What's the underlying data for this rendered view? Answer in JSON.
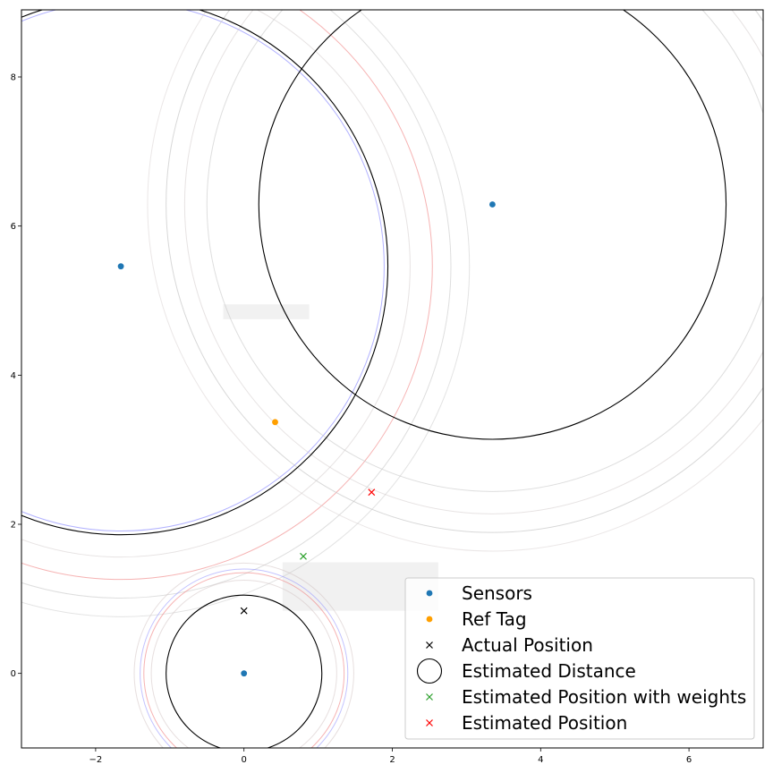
{
  "chart_data": {
    "type": "scatter",
    "title": "",
    "xlabel": "",
    "ylabel": "",
    "xlim": [
      -3,
      7
    ],
    "ylim": [
      -1,
      8.9
    ],
    "x_ticks": [
      -2,
      0,
      2,
      4,
      6
    ],
    "x_tick_labels": [
      "−2",
      "0",
      "2",
      "4",
      "6"
    ],
    "y_ticks": [
      0,
      2,
      4,
      6,
      8
    ],
    "y_tick_labels": [
      "0",
      "2",
      "4",
      "6",
      "8"
    ],
    "grid": false,
    "legend_position": "lower-right",
    "series": [
      {
        "name": "Sensors",
        "kind": "points",
        "marker": "circle",
        "color": "#1f77b4",
        "points": [
          [
            -1.66,
            5.46
          ],
          [
            3.35,
            6.29
          ],
          [
            0.0,
            0.0
          ]
        ]
      },
      {
        "name": "Ref Tag",
        "kind": "points",
        "marker": "circle",
        "color": "#ff9f00",
        "points": [
          [
            0.42,
            3.37
          ]
        ]
      },
      {
        "name": "Actual Position",
        "kind": "points",
        "marker": "x",
        "color": "#000000",
        "points": [
          [
            0.0,
            0.84
          ]
        ]
      },
      {
        "name": "Estimated Distance",
        "kind": "circles",
        "color": "#000000",
        "circles": [
          {
            "cx": -1.66,
            "cy": 5.46,
            "r": 3.6
          },
          {
            "cx": 3.35,
            "cy": 6.29,
            "r": 3.15
          },
          {
            "cx": 0.0,
            "cy": 0.0,
            "r": 1.05
          }
        ]
      },
      {
        "name": "Estimated Position with weights",
        "kind": "points",
        "marker": "x",
        "color": "#2ca02c",
        "points": [
          [
            0.8,
            1.57
          ]
        ]
      },
      {
        "name": "Estimated Position",
        "kind": "points",
        "marker": "x",
        "color": "#ff0000",
        "points": [
          [
            1.72,
            2.43
          ]
        ]
      }
    ],
    "faint_circles": [
      {
        "cx": -1.66,
        "cy": 5.46,
        "r": 3.55,
        "color": "#5555ff",
        "opacity": 0.45
      },
      {
        "cx": -1.66,
        "cy": 5.46,
        "r": 4.2,
        "color": "#f08080",
        "opacity": 0.6
      },
      {
        "cx": -1.66,
        "cy": 5.46,
        "r": 4.45,
        "color": "#c8c8c8",
        "opacity": 0.6
      },
      {
        "cx": -1.66,
        "cy": 5.46,
        "r": 4.7,
        "color": "#c8c8c8",
        "opacity": 0.5
      },
      {
        "cx": -1.66,
        "cy": 5.46,
        "r": 3.9,
        "color": "#d0c8c8",
        "opacity": 0.5
      },
      {
        "cx": 3.35,
        "cy": 6.29,
        "r": 4.4,
        "color": "#c8c8c8",
        "opacity": 0.7
      },
      {
        "cx": 3.35,
        "cy": 6.29,
        "r": 3.85,
        "color": "#c8c8c8",
        "opacity": 0.6
      },
      {
        "cx": 3.35,
        "cy": 6.29,
        "r": 4.15,
        "color": "#d0c8c8",
        "opacity": 0.5
      },
      {
        "cx": 3.35,
        "cy": 6.29,
        "r": 4.65,
        "color": "#d8d0d0",
        "opacity": 0.5
      },
      {
        "cx": 0.0,
        "cy": 0.0,
        "r": 1.35,
        "color": "#f08080",
        "opacity": 0.6
      },
      {
        "cx": 0.0,
        "cy": 0.0,
        "r": 1.4,
        "color": "#8888ff",
        "opacity": 0.5
      },
      {
        "cx": 0.0,
        "cy": 0.0,
        "r": 1.48,
        "color": "#d0c0c0",
        "opacity": 0.5
      },
      {
        "cx": 0.0,
        "cy": 0.0,
        "r": 1.25,
        "color": "#d0c0c0",
        "opacity": 0.5
      }
    ],
    "shaded_regions": [
      {
        "x0": -0.28,
        "y0": 4.75,
        "x1": 0.88,
        "y1": 4.95,
        "color": "#eeeeee"
      },
      {
        "x0": 0.52,
        "y0": 0.84,
        "x1": 2.62,
        "y1": 1.49,
        "color": "#eeeeee"
      }
    ]
  }
}
